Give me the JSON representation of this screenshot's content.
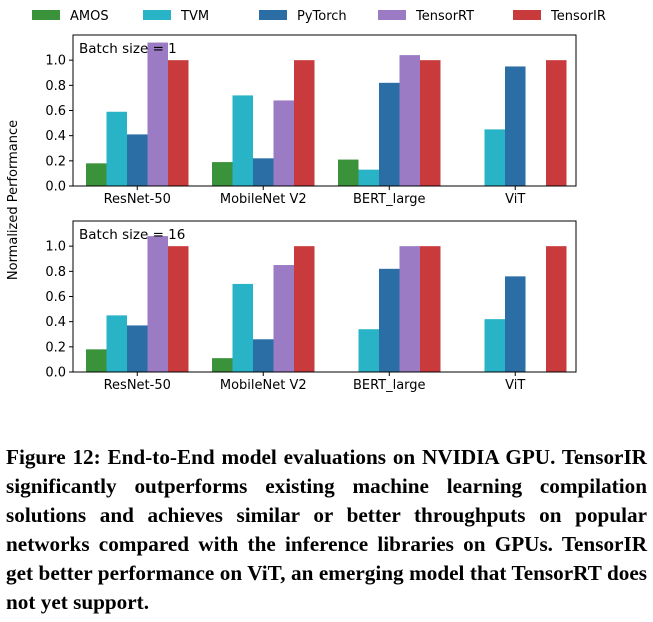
{
  "figure": {
    "caption": "Figure 12: End-to-End model evaluations on NVIDIA GPU. TensorIR significantly outperforms existing machine learn­ing compilation solutions and achieves similar or better throughputs on popular networks compared with the infer­ence libraries on GPUs. TensorIR get better performance on ViT, an emerging model that TensorRT does not yet support."
  },
  "legend": {
    "placement": "top",
    "items": [
      {
        "name": "AMOS",
        "color": "#3a923a"
      },
      {
        "name": "TVM",
        "color": "#29b3c6"
      },
      {
        "name": "PyTorch",
        "color": "#2b6ea5"
      },
      {
        "name": "TensorRT",
        "color": "#9a7bc4"
      },
      {
        "name": "TensorIR",
        "color": "#c93a3c"
      }
    ]
  },
  "chart_data": [
    {
      "type": "bar",
      "title": "Batch size = 1",
      "ylabel": "Normalized Performance",
      "ylim": [
        0,
        1.2
      ],
      "yticks": [
        "0.0",
        "0.2",
        "0.4",
        "0.6",
        "0.8",
        "1.0"
      ],
      "grid": false,
      "categories": [
        "ResNet-50",
        "MobileNet V2",
        "BERT_large",
        "ViT"
      ],
      "series": [
        {
          "name": "AMOS",
          "values": [
            0.18,
            0.19,
            0.21,
            null
          ]
        },
        {
          "name": "TVM",
          "values": [
            0.59,
            0.72,
            0.13,
            0.45
          ]
        },
        {
          "name": "PyTorch",
          "values": [
            0.41,
            0.22,
            0.82,
            0.95
          ]
        },
        {
          "name": "TensorRT",
          "values": [
            1.14,
            0.68,
            1.04,
            null
          ]
        },
        {
          "name": "TensorIR",
          "values": [
            1.0,
            1.0,
            1.0,
            1.0
          ]
        }
      ]
    },
    {
      "type": "bar",
      "title": "Batch size = 16",
      "ylabel": "Normalized Performance",
      "ylim": [
        0,
        1.2
      ],
      "yticks": [
        "0.0",
        "0.2",
        "0.4",
        "0.6",
        "0.8",
        "1.0"
      ],
      "grid": false,
      "categories": [
        "ResNet-50",
        "MobileNet V2",
        "BERT_large",
        "ViT"
      ],
      "series": [
        {
          "name": "AMOS",
          "values": [
            0.18,
            0.11,
            null,
            null
          ]
        },
        {
          "name": "TVM",
          "values": [
            0.45,
            0.7,
            0.34,
            0.42
          ]
        },
        {
          "name": "PyTorch",
          "values": [
            0.37,
            0.26,
            0.82,
            0.76
          ]
        },
        {
          "name": "TensorRT",
          "values": [
            1.08,
            0.85,
            1.0,
            null
          ]
        },
        {
          "name": "TensorIR",
          "values": [
            1.0,
            1.0,
            1.0,
            1.0
          ]
        }
      ]
    }
  ]
}
